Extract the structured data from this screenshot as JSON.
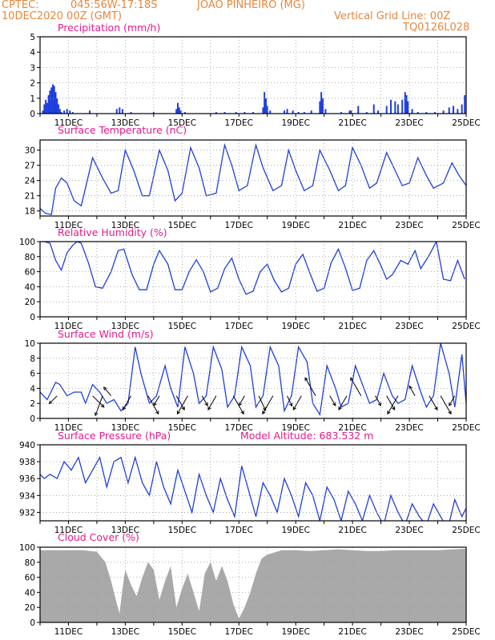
{
  "header": {
    "source": "CPTEC:",
    "coords": "045:56W-17:18S",
    "station": "JOAO PINHEIRO (MG)",
    "run_time": "10DEC2020 00Z (GMT)",
    "grid_note": "Vertical Grid Line: 00Z",
    "model_code": "TQ0126L028"
  },
  "colors": {
    "header": "#e8863a",
    "title": "#e8198b",
    "series": "#1f3fdd",
    "cloud": "#a9a9a9",
    "grid": "#9a9a9a",
    "vector": "#000000"
  },
  "chart_data": [
    {
      "id": "precipitation",
      "type": "bar",
      "title": "Precipitation (mm/h)",
      "x_labels": [
        "11DEC",
        "13DEC",
        "15DEC",
        "17DEC",
        "19DEC",
        "21DEC",
        "23DEC",
        "25DEC"
      ],
      "ylim": [
        0,
        5
      ],
      "yticks": [
        0,
        1,
        2,
        3,
        4,
        5
      ],
      "grid": true,
      "x": [
        10.1,
        10.15,
        10.2,
        10.25,
        10.3,
        10.35,
        10.4,
        10.45,
        10.5,
        10.55,
        10.6,
        10.65,
        10.7,
        10.75,
        10.85,
        10.95,
        11.05,
        11.15,
        11.75,
        12.7,
        12.8,
        12.9,
        13.2,
        14.0,
        14.8,
        14.85,
        14.9,
        14.95,
        15.1,
        16.2,
        16.5,
        16.9,
        17.2,
        17.5,
        17.85,
        17.9,
        17.95,
        18.0,
        18.1,
        18.6,
        18.7,
        18.9,
        19.1,
        19.3,
        19.55,
        19.85,
        19.9,
        19.95,
        20.05,
        20.6,
        20.9,
        20.95,
        21.2,
        21.5,
        21.75,
        21.9,
        22.2,
        22.35,
        22.5,
        22.6,
        22.75,
        22.85,
        22.9,
        22.95,
        23.1,
        23.3,
        23.6,
        23.9,
        24.2,
        24.4,
        24.55,
        24.7,
        24.85,
        24.95
      ],
      "values": [
        0.2,
        0.6,
        0.9,
        0.7,
        1.2,
        1.5,
        1.7,
        1.9,
        1.8,
        1.4,
        1.0,
        0.6,
        0.3,
        0.1,
        0.2,
        0.3,
        0.2,
        0.1,
        0.2,
        0.3,
        0.4,
        0.3,
        0.1,
        0.1,
        0.3,
        0.7,
        0.4,
        0.2,
        0.1,
        0.1,
        0.1,
        0.1,
        0.1,
        0.1,
        0.4,
        1.4,
        1.0,
        0.5,
        0.2,
        0.2,
        0.3,
        0.2,
        0.1,
        0.1,
        0.2,
        0.8,
        1.4,
        1.0,
        0.3,
        0.1,
        0.2,
        0.2,
        0.5,
        0.1,
        0.6,
        0.2,
        0.5,
        0.9,
        0.8,
        0.6,
        0.9,
        1.4,
        1.2,
        0.8,
        0.3,
        0.1,
        0.1,
        0.1,
        0.2,
        0.4,
        0.5,
        0.3,
        0.6,
        1.2
      ]
    },
    {
      "id": "temperature",
      "type": "line",
      "title": "Surface Temperature (nC)",
      "x_labels": [
        "11DEC",
        "13DEC",
        "15DEC",
        "17DEC",
        "19DEC",
        "21DEC",
        "23DEC",
        "25DEC"
      ],
      "ylim": [
        17,
        32
      ],
      "yticks": [
        18,
        21,
        24,
        27,
        30
      ],
      "grid": true,
      "x": [
        10.0,
        10.2,
        10.4,
        10.55,
        10.75,
        10.95,
        11.2,
        11.45,
        11.6,
        11.85,
        12.2,
        12.5,
        12.75,
        13.0,
        13.3,
        13.6,
        13.85,
        14.2,
        14.5,
        14.75,
        15.0,
        15.3,
        15.6,
        15.85,
        16.2,
        16.5,
        16.75,
        17.0,
        17.3,
        17.6,
        17.85,
        18.2,
        18.5,
        18.75,
        19.0,
        19.3,
        19.6,
        19.85,
        20.2,
        20.5,
        20.75,
        21.0,
        21.3,
        21.6,
        21.85,
        22.2,
        22.5,
        22.75,
        23.0,
        23.3,
        23.6,
        23.85,
        24.2,
        24.5,
        24.75,
        25.0
      ],
      "values": [
        18.5,
        17.5,
        17.3,
        22.5,
        24.5,
        23.5,
        20.0,
        19.0,
        22.5,
        28.5,
        24.5,
        21.5,
        22.0,
        30.0,
        26.0,
        21.0,
        21.0,
        30.0,
        26.0,
        20.0,
        21.5,
        30.5,
        26.5,
        21.0,
        21.5,
        31.0,
        27.0,
        22.0,
        23.0,
        31.0,
        26.5,
        22.0,
        23.0,
        30.0,
        26.0,
        22.0,
        23.0,
        30.0,
        26.0,
        22.0,
        23.0,
        30.5,
        27.0,
        22.5,
        23.5,
        29.5,
        26.0,
        23.0,
        23.5,
        28.5,
        25.0,
        22.5,
        23.5,
        27.5,
        25.0,
        23.0
      ]
    },
    {
      "id": "humidity",
      "type": "line",
      "title": "Relative Humidity (%)",
      "x_labels": [
        "11DEC",
        "13DEC",
        "15DEC",
        "17DEC",
        "19DEC",
        "21DEC",
        "23DEC",
        "25DEC"
      ],
      "ylim": [
        0,
        100
      ],
      "yticks": [
        0,
        20,
        40,
        60,
        80,
        100
      ],
      "grid": true,
      "x": [
        10.0,
        10.15,
        10.35,
        10.55,
        10.75,
        10.95,
        11.15,
        11.3,
        11.45,
        11.7,
        11.95,
        12.2,
        12.5,
        12.75,
        12.95,
        13.25,
        13.5,
        13.75,
        14.0,
        14.2,
        14.5,
        14.75,
        15.0,
        15.25,
        15.5,
        15.75,
        16.0,
        16.25,
        16.5,
        16.75,
        17.0,
        17.25,
        17.5,
        17.75,
        18.0,
        18.25,
        18.5,
        18.75,
        19.0,
        19.25,
        19.5,
        19.75,
        20.0,
        20.25,
        20.5,
        20.75,
        21.0,
        21.25,
        21.5,
        21.75,
        22.0,
        22.2,
        22.4,
        22.7,
        22.95,
        23.2,
        23.4,
        23.7,
        23.95,
        24.2,
        24.45,
        24.7,
        24.95
      ],
      "values": [
        100,
        100,
        98,
        75,
        62,
        85,
        95,
        100,
        98,
        72,
        40,
        38,
        60,
        88,
        90,
        55,
        36,
        36,
        70,
        88,
        70,
        36,
        36,
        60,
        76,
        60,
        33,
        38,
        64,
        78,
        50,
        30,
        34,
        60,
        70,
        48,
        33,
        38,
        70,
        83,
        58,
        34,
        38,
        72,
        90,
        65,
        35,
        38,
        75,
        88,
        68,
        50,
        56,
        75,
        70,
        88,
        64,
        82,
        100,
        50,
        48,
        75,
        50
      ]
    },
    {
      "id": "wind",
      "type": "line",
      "title": "Surface Wind (m/s)",
      "x_labels": [
        "11DEC",
        "13DEC",
        "15DEC",
        "17DEC",
        "19DEC",
        "21DEC",
        "23DEC",
        "25DEC"
      ],
      "ylim": [
        0,
        10
      ],
      "yticks": [
        0,
        2,
        4,
        6,
        8,
        10
      ],
      "grid": true,
      "x": [
        10.0,
        10.25,
        10.55,
        10.7,
        10.95,
        11.2,
        11.45,
        11.6,
        11.85,
        12.1,
        12.35,
        12.6,
        12.85,
        13.1,
        13.35,
        13.55,
        13.85,
        14.1,
        14.4,
        14.6,
        14.85,
        15.1,
        15.4,
        15.6,
        15.85,
        16.1,
        16.4,
        16.6,
        16.85,
        17.1,
        17.4,
        17.6,
        17.85,
        18.1,
        18.4,
        18.6,
        18.85,
        19.1,
        19.4,
        19.6,
        19.85,
        20.1,
        20.4,
        20.6,
        20.85,
        21.1,
        21.4,
        21.6,
        21.85,
        22.1,
        22.4,
        22.6,
        22.85,
        23.1,
        23.4,
        23.6,
        23.85,
        24.1,
        24.4,
        24.6,
        24.85,
        25.0
      ],
      "values": [
        3.5,
        2.5,
        4.8,
        4.5,
        3.0,
        3.5,
        3.5,
        2.0,
        4.5,
        3.5,
        2.0,
        2.5,
        1.0,
        2.0,
        9.5,
        6.0,
        2.0,
        3.0,
        7.0,
        4.0,
        1.5,
        9.5,
        6.0,
        2.0,
        3.0,
        9.5,
        6.5,
        1.5,
        3.0,
        9.5,
        7.0,
        1.5,
        3.0,
        9.5,
        7.0,
        1.0,
        3.0,
        9.5,
        7.5,
        2.0,
        0.5,
        7.0,
        4.0,
        1.5,
        2.0,
        7.0,
        4.0,
        2.0,
        2.5,
        6.0,
        3.0,
        2.0,
        2.5,
        7.0,
        3.5,
        1.5,
        3.0,
        10.0,
        6.0,
        1.5,
        8.5,
        2.0
      ]
    },
    {
      "id": "pressure",
      "type": "line",
      "title": "Surface Pressure (hPa)",
      "annotation": "Model Altitude: 683.532 m",
      "x_labels": [
        "11DEC",
        "13DEC",
        "15DEC",
        "17DEC",
        "19DEC",
        "21DEC",
        "23DEC",
        "25DEC"
      ],
      "ylim": [
        931,
        940
      ],
      "yticks": [
        932,
        934,
        936,
        938,
        940
      ],
      "grid": true,
      "x": [
        10.0,
        10.15,
        10.35,
        10.6,
        10.85,
        11.1,
        11.35,
        11.6,
        11.85,
        12.1,
        12.35,
        12.6,
        12.85,
        13.1,
        13.35,
        13.6,
        13.85,
        14.1,
        14.35,
        14.6,
        14.85,
        15.1,
        15.35,
        15.6,
        15.85,
        16.1,
        16.35,
        16.6,
        16.85,
        17.1,
        17.35,
        17.6,
        17.85,
        18.1,
        18.35,
        18.6,
        18.85,
        19.1,
        19.35,
        19.6,
        19.85,
        20.1,
        20.35,
        20.6,
        20.85,
        21.1,
        21.35,
        21.6,
        21.85,
        22.1,
        22.35,
        22.6,
        22.85,
        23.1,
        23.35,
        23.6,
        23.85,
        24.1,
        24.35,
        24.6,
        24.85,
        25.0
      ],
      "values": [
        936.5,
        936.0,
        936.5,
        936.0,
        938.0,
        937.0,
        938.5,
        935.5,
        937.0,
        938.5,
        935.0,
        938.0,
        938.5,
        935.5,
        938.5,
        935.5,
        934.0,
        938.0,
        935.0,
        933.0,
        937.0,
        934.5,
        932.0,
        936.5,
        934.0,
        932.0,
        936.0,
        933.5,
        931.5,
        937.5,
        934.5,
        931.5,
        935.5,
        934.0,
        932.0,
        936.0,
        934.0,
        931.5,
        935.5,
        934.0,
        931.0,
        935.0,
        933.5,
        931.0,
        934.5,
        933.0,
        931.0,
        934.0,
        932.0,
        930.5,
        934.0,
        932.0,
        930.5,
        933.0,
        931.5,
        930.5,
        933.0,
        931.5,
        930.0,
        933.5,
        931.5,
        932.5
      ]
    },
    {
      "id": "cloud",
      "type": "area",
      "title": "Cloud Cover (%)",
      "x_labels": [
        "11DEC",
        "13DEC",
        "15DEC",
        "17DEC",
        "19DEC",
        "21DEC",
        "23DEC",
        "25DEC"
      ],
      "ylim": [
        0,
        100
      ],
      "yticks": [
        0,
        20,
        40,
        60,
        80,
        100
      ],
      "grid": true,
      "x": [
        10.0,
        10.5,
        11.0,
        11.5,
        12.0,
        12.3,
        12.5,
        12.7,
        12.8,
        12.9,
        13.0,
        13.2,
        13.4,
        13.6,
        13.8,
        14.0,
        14.2,
        14.4,
        14.6,
        14.8,
        15.0,
        15.2,
        15.4,
        15.6,
        15.8,
        16.0,
        16.2,
        16.4,
        16.6,
        16.8,
        17.0,
        17.2,
        17.4,
        17.6,
        17.8,
        18.0,
        18.5,
        19.0,
        19.5,
        20.0,
        20.5,
        21.0,
        21.5,
        22.0,
        22.5,
        23.0,
        23.5,
        24.0,
        24.5,
        25.0
      ],
      "values": [
        96,
        96,
        96,
        96,
        94,
        80,
        55,
        25,
        12,
        45,
        70,
        50,
        35,
        60,
        80,
        70,
        30,
        55,
        75,
        20,
        45,
        65,
        40,
        15,
        65,
        80,
        55,
        75,
        55,
        25,
        5,
        20,
        40,
        65,
        85,
        90,
        96,
        96,
        95,
        96,
        97,
        96,
        95,
        95,
        96,
        96,
        96,
        96,
        97,
        98
      ]
    }
  ]
}
